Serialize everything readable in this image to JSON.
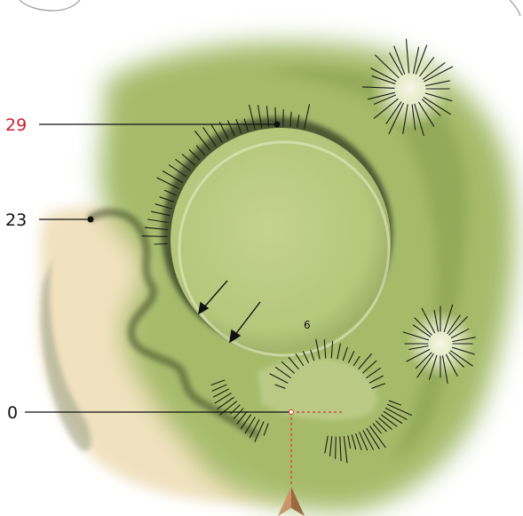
{
  "map": {
    "contour_labels": [
      {
        "id": "summit",
        "text": "29",
        "color": "#c8202a"
      },
      {
        "id": "ridge",
        "text": "23",
        "color": "#111111"
      },
      {
        "id": "base",
        "text": "0",
        "color": "#111111"
      }
    ],
    "inner_label": "6",
    "flow_arrows": 2,
    "north_arrow_color": "#b07a4e",
    "colors": {
      "terrain_green": "#a6bb6a",
      "crater_floor": "#bccd84",
      "rim_shadow": "#3d4a2a",
      "sand": "#f1e2bf",
      "marker_dashed": "#d0362e"
    }
  }
}
